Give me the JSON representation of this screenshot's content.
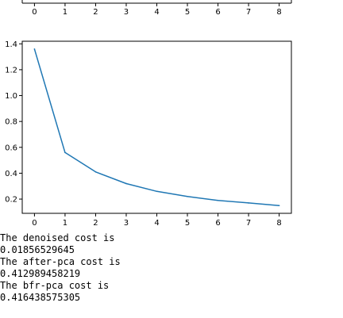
{
  "chart_data": [
    {
      "type": "line",
      "partially_visible": true,
      "x_ticks": [
        0,
        1,
        2,
        3,
        4,
        5,
        6,
        7,
        8
      ],
      "xlim": [
        -0.4,
        8.4
      ]
    },
    {
      "type": "line",
      "title": "",
      "xlabel": "",
      "ylabel": "",
      "x": [
        0,
        1,
        2,
        3,
        4,
        5,
        6,
        7,
        8
      ],
      "series": [
        {
          "values": [
            1.36,
            0.56,
            0.41,
            0.32,
            0.26,
            0.22,
            0.19,
            0.17,
            0.15
          ]
        }
      ],
      "x_ticks": [
        0,
        1,
        2,
        3,
        4,
        5,
        6,
        7,
        8
      ],
      "y_ticks": [
        0.2,
        0.4,
        0.6,
        0.8,
        1.0,
        1.2,
        1.4
      ],
      "y_tick_labels": [
        "0.2",
        "0.4",
        "0.6",
        "0.8",
        "1.0",
        "1.2",
        "1.4"
      ],
      "xlim": [
        -0.4,
        8.4
      ],
      "ylim": [
        0.09,
        1.42
      ],
      "grid": false,
      "line_color": "#1f77b4"
    }
  ],
  "output": {
    "lines": [
      "The denoised cost is",
      "0.01856529645",
      "The after-pca cost is",
      "0.412989458219",
      "The bfr-pca cost is",
      "0.416438575305"
    ]
  }
}
